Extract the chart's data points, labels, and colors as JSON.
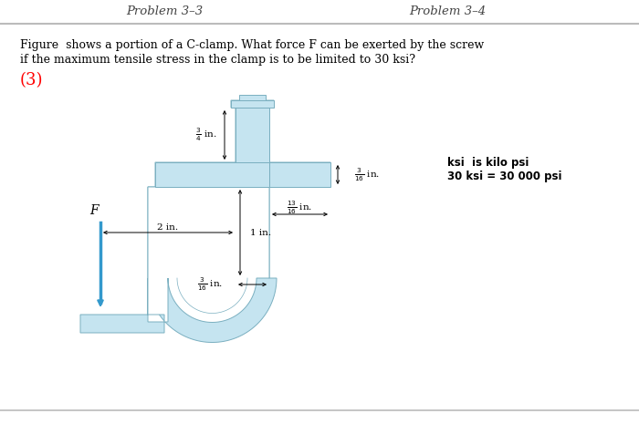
{
  "title_left": "Problem 3–3",
  "title_right": "Problem 3–4",
  "question_line1": "Figure  shows a portion of a C-clamp. What force F can be exerted by the screw",
  "question_line2": "if the maximum tensile stress in the clamp is to be limited to 30 ksi?",
  "circled_number": "(3)",
  "note_line1": "ksi  is kilo psi",
  "note_line2": "30 ksi = 30 000 psi",
  "clamp_fill": "#c5e4f0",
  "clamp_edge": "#7aafc0",
  "clamp_inner": "#ddeef8",
  "force_color": "#3399cc",
  "bg": "white",
  "header_line_color": "#bbbbbb",
  "text_color": "black"
}
